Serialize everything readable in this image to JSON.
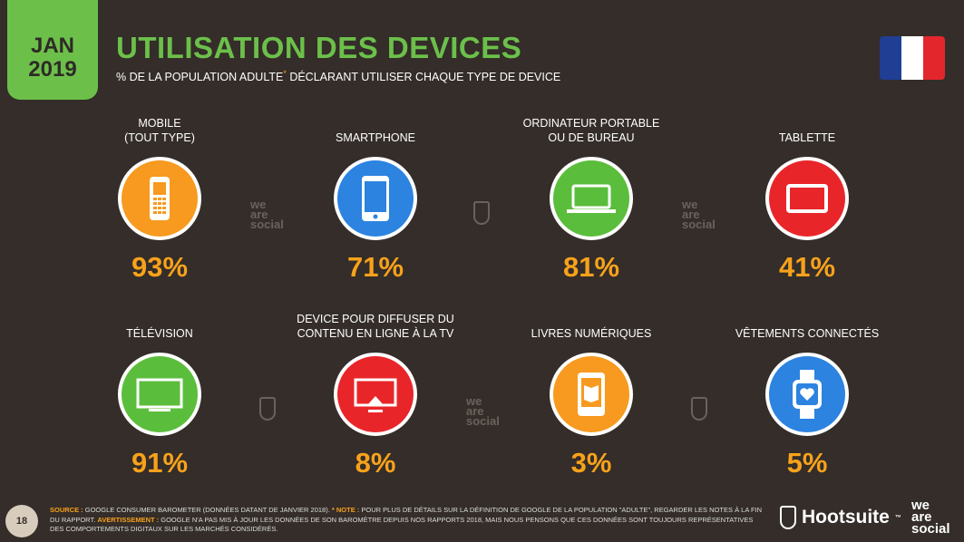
{
  "header": {
    "date_month": "JAN",
    "date_year": "2019",
    "title": "UTILISATION DES DEVICES",
    "subtitle": "% DE LA POPULATION ADULTE",
    "subtitle_mark": "*",
    "subtitle_rest": " DÉCLARANT UTILISER CHAQUE TYPE DE DEVICE"
  },
  "flag_colors": [
    "#1f3e94",
    "#ffffff",
    "#e3262b"
  ],
  "items": [
    {
      "label": "MOBILE\n(TOUT TYPE)",
      "value": "93%",
      "icon": "feature-phone-icon",
      "color": "#f79a1f"
    },
    {
      "label": "SMARTPHONE",
      "value": "71%",
      "icon": "smartphone-icon",
      "color": "#2c83e0"
    },
    {
      "label": "ORDINATEUR PORTABLE\nOU DE BUREAU",
      "value": "81%",
      "icon": "laptop-icon",
      "color": "#5bbd3c"
    },
    {
      "label": "TABLETTE",
      "value": "41%",
      "icon": "tablet-icon",
      "color": "#e8262a"
    },
    {
      "label": "TÉLÉVISION",
      "value": "91%",
      "icon": "tv-icon",
      "color": "#5bbd3c"
    },
    {
      "label": "DEVICE POUR DIFFUSER DU\nCONTENU EN LIGNE À LA TV",
      "value": "8%",
      "icon": "streaming-device-icon",
      "color": "#e8262a"
    },
    {
      "label": "LIVRES NUMÉRIQUES",
      "value": "3%",
      "icon": "ebook-icon",
      "color": "#f79a1f"
    },
    {
      "label": "VÊTEMENTS CONNECTÉS",
      "value": "5%",
      "icon": "smartwatch-icon",
      "color": "#2c83e0"
    }
  ],
  "watermark": "we are social",
  "footer": {
    "page": "18",
    "source_label": "SOURCE :",
    "source": " GOOGLE CONSUMER BAROMETER (DONNÉES DATANT DE JANVIER 2018). ",
    "note_label": "* NOTE :",
    "note": " POUR PLUS DE DÉTAILS SUR LA DÉFINITION DE GOOGLE DE LA POPULATION \"ADULTE\", REGARDER LES NOTES À LA FIN DU RAPPORT. ",
    "warning_label": "AVERTISSEMENT :",
    "warning": " GOOGLE N'A PAS MIS À JOUR LES DONNÉES DE SON BAROMÈTRE DEPUIS NOS RAPPORTS 2018, MAIS NOUS PENSONS QUE CES DONNÉES SONT TOUJOURS REPRÉSENTATIVES DES COMPORTEMENTS DIGITAUX SUR LES MARCHÉS CONSIDÉRÉS."
  },
  "brands": {
    "hootsuite": "Hootsuite",
    "tm": "™",
    "was1": "we",
    "was2": "are",
    "was3": "social"
  },
  "accent": "#f7a21b",
  "brand_green": "#6cc04a"
}
